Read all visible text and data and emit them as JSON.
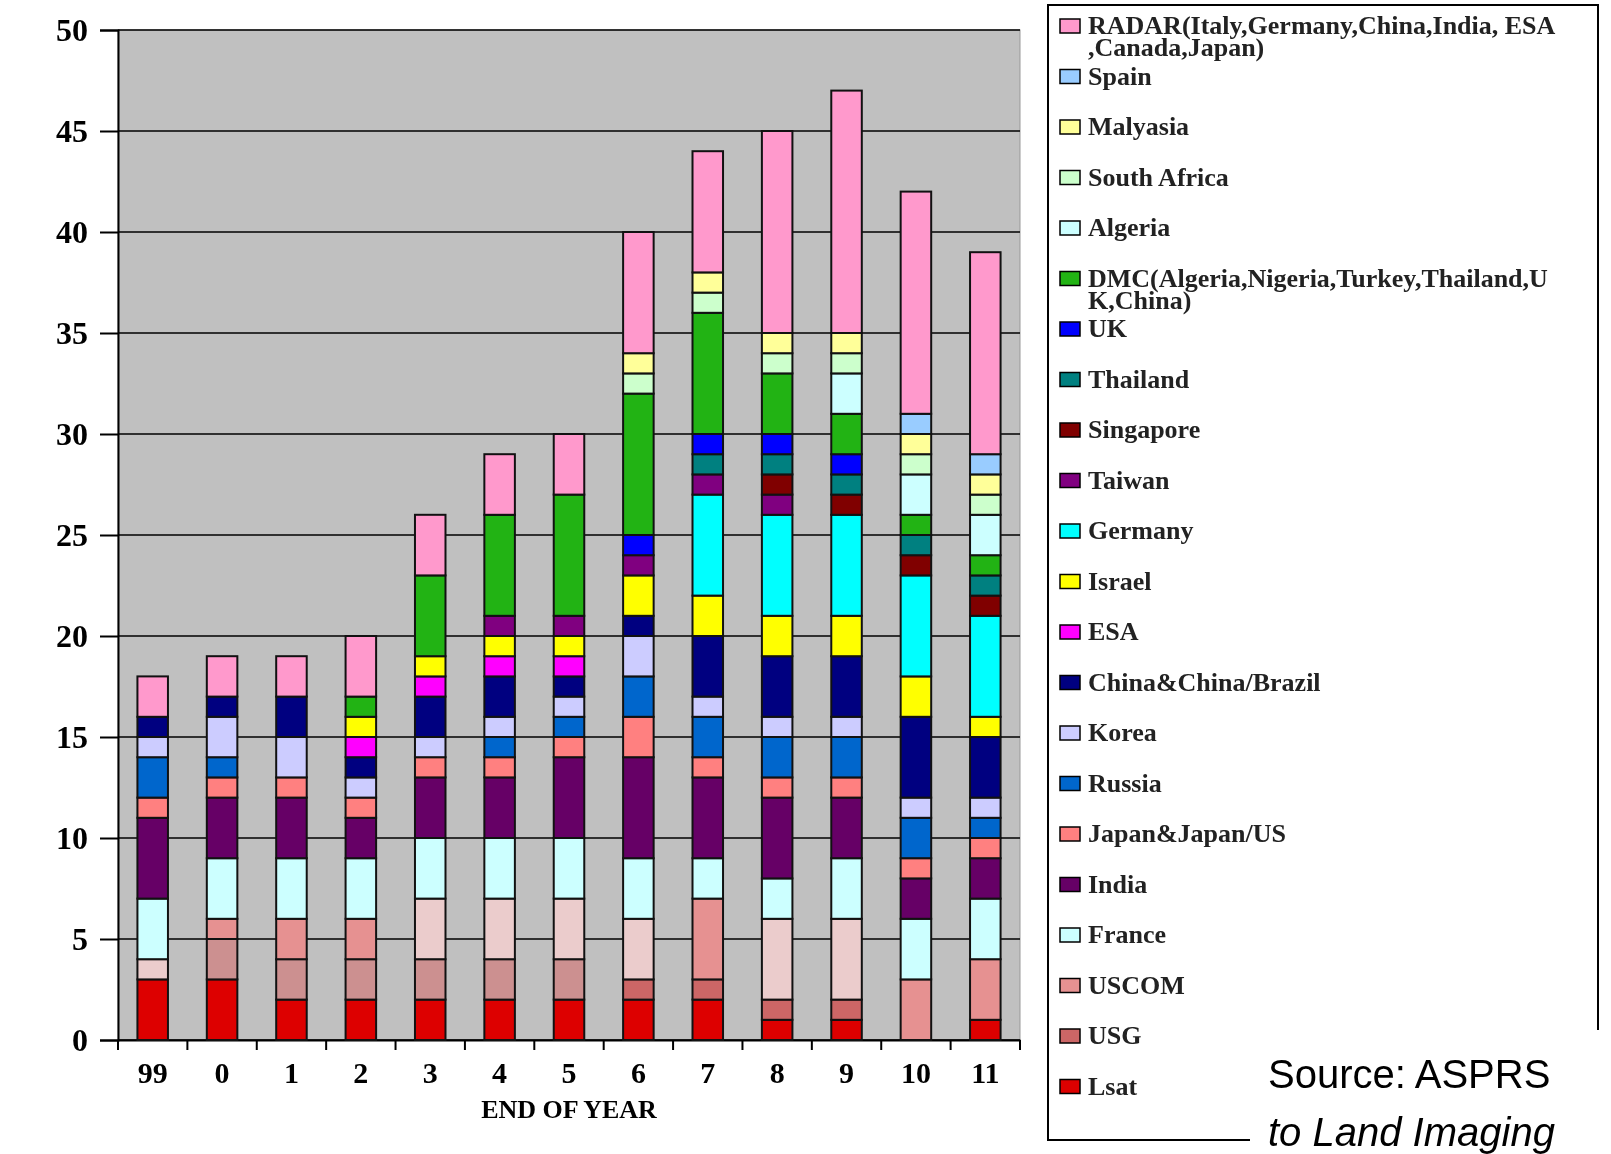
{
  "chart_data": {
    "type": "bar",
    "stacked": true,
    "xlabel": "END OF YEAR",
    "categories": [
      "99",
      "0",
      "1",
      "2",
      "3",
      "4",
      "5",
      "6",
      "7",
      "8",
      "9",
      "10",
      "11"
    ],
    "ylim": [
      0,
      50
    ],
    "yticks": [
      0,
      5,
      10,
      15,
      20,
      25,
      30,
      35,
      40,
      45,
      50
    ],
    "grid": "y",
    "legend": "right",
    "annotations": [
      "Source: ASPRS",
      "to Land Imaging"
    ],
    "series": [
      {
        "name": "Lsat",
        "color": "#dd0000",
        "values": [
          3,
          3,
          2,
          2,
          2,
          2,
          2,
          2,
          2,
          1,
          1,
          null,
          1
        ]
      },
      {
        "name": "USG",
        "color": "#cc6666",
        "colors": [
          null,
          "#cc9090",
          "#cc9090",
          "#cc9090",
          "#cc9090",
          "#cc9090",
          "#cc9090",
          "#cc6666",
          "#cc6666",
          "#cc6666",
          "#cc6666",
          null,
          null
        ],
        "values": [
          null,
          2,
          2,
          2,
          2,
          2,
          2,
          1,
          1,
          1,
          1,
          null,
          null
        ]
      },
      {
        "name": "USCOM",
        "color": "#e69191",
        "colors": [
          "#ebcccc",
          "#e69191",
          "#e69191",
          "#e69191",
          "#ebcccc",
          "#ebcccc",
          "#ebcccc",
          "#ebcccc",
          "#e69191",
          "#ebcccc",
          "#ebcccc",
          "#e69191",
          "#e69191"
        ],
        "values": [
          1,
          1,
          2,
          2,
          3,
          3,
          3,
          3,
          4,
          4,
          4,
          3,
          3
        ]
      },
      {
        "name": "France",
        "color": "#ccffff",
        "values": [
          3,
          3,
          3,
          3,
          3,
          3,
          3,
          3,
          2,
          2,
          3,
          3,
          3
        ]
      },
      {
        "name": "India",
        "color": "#660066",
        "values": [
          4,
          3,
          3,
          2,
          3,
          3,
          4,
          5,
          4,
          4,
          3,
          2,
          2
        ]
      },
      {
        "name": "Japan&Japan/US",
        "color": "#ff8080",
        "values": [
          1,
          1,
          1,
          1,
          1,
          1,
          1,
          2,
          1,
          1,
          1,
          1,
          1
        ]
      },
      {
        "name": "Russia",
        "color": "#0066cc",
        "values": [
          2,
          1,
          null,
          null,
          null,
          1,
          1,
          2,
          2,
          2,
          2,
          2,
          1
        ]
      },
      {
        "name": "Korea",
        "color": "#ccccff",
        "values": [
          1,
          2,
          2,
          1,
          1,
          1,
          1,
          2,
          1,
          1,
          1,
          1,
          1
        ]
      },
      {
        "name": "China&China/Brazil",
        "color": "#000080",
        "values": [
          1,
          1,
          2,
          1,
          2,
          2,
          1,
          1,
          3,
          3,
          3,
          4,
          3
        ]
      },
      {
        "name": "ESA",
        "color": "#ff00ff",
        "values": [
          null,
          null,
          null,
          1,
          1,
          1,
          1,
          null,
          null,
          null,
          null,
          null,
          null
        ]
      },
      {
        "name": "Israel",
        "color": "#ffff00",
        "values": [
          null,
          null,
          null,
          1,
          1,
          1,
          1,
          2,
          2,
          2,
          2,
          2,
          1
        ]
      },
      {
        "name": "Germany",
        "color": "#00ffff",
        "values": [
          null,
          null,
          null,
          null,
          null,
          null,
          null,
          null,
          5,
          5,
          5,
          5,
          5
        ]
      },
      {
        "name": "Taiwan",
        "color": "#800080",
        "values": [
          null,
          null,
          null,
          null,
          null,
          1,
          1,
          1,
          1,
          1,
          null,
          null,
          null
        ]
      },
      {
        "name": "Singapore",
        "color": "#800000",
        "values": [
          null,
          null,
          null,
          null,
          null,
          null,
          null,
          null,
          null,
          1,
          1,
          1,
          1
        ]
      },
      {
        "name": "Thailand",
        "color": "#008080",
        "values": [
          null,
          null,
          null,
          null,
          null,
          null,
          null,
          null,
          1,
          1,
          1,
          1,
          1
        ]
      },
      {
        "name": "UK",
        "color": "#0000ff",
        "values": [
          null,
          null,
          null,
          null,
          null,
          null,
          null,
          1,
          1,
          1,
          1,
          null,
          null
        ]
      },
      {
        "name": "DMC(Algeria,Nigeria,Turkey,Thailand,UK,China)",
        "color": "#22b314",
        "values": [
          null,
          null,
          null,
          1,
          4,
          5,
          6,
          7,
          6,
          3,
          2,
          1,
          1
        ]
      },
      {
        "name": "Algeria",
        "color": "#ccffff",
        "values": [
          null,
          null,
          null,
          null,
          null,
          null,
          null,
          null,
          null,
          null,
          2,
          2,
          2
        ]
      },
      {
        "name": "South Africa",
        "color": "#ccffcc",
        "values": [
          null,
          null,
          null,
          null,
          null,
          null,
          null,
          1,
          1,
          1,
          1,
          1,
          1
        ]
      },
      {
        "name": "Malyasia",
        "color": "#ffff99",
        "values": [
          null,
          null,
          null,
          null,
          null,
          null,
          null,
          1,
          1,
          1,
          1,
          1,
          1
        ]
      },
      {
        "name": "Spain",
        "color": "#99ccff",
        "values": [
          null,
          null,
          null,
          null,
          null,
          null,
          null,
          null,
          null,
          null,
          null,
          1,
          1
        ]
      },
      {
        "name": "RADAR(Italy,Germany,China,India, ESA,Canada,Japan)",
        "color": "#ff99cc",
        "values": [
          2,
          2,
          2,
          3,
          3,
          3,
          3,
          6,
          6,
          10,
          12,
          11,
          10
        ]
      }
    ]
  }
}
